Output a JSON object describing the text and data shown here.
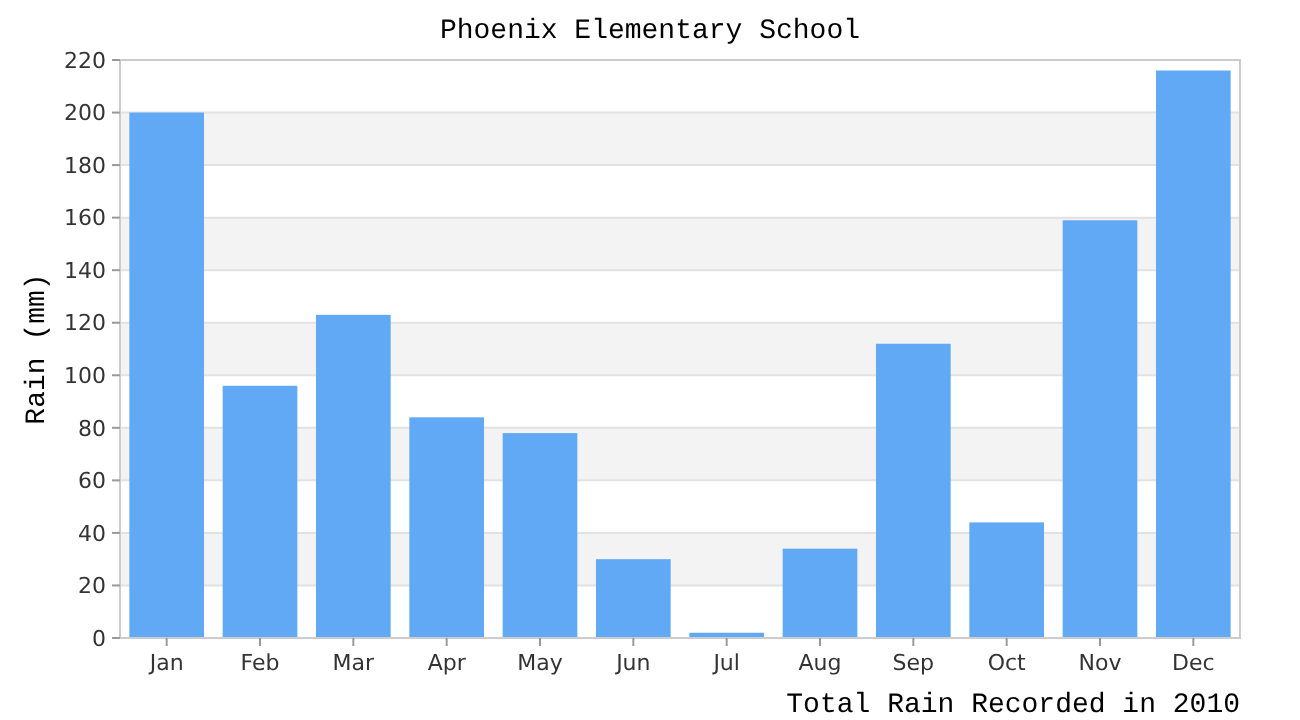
{
  "chart_data": {
    "type": "bar",
    "title": "Phoenix Elementary School",
    "xlabel": "Total Rain Recorded in 2010",
    "ylabel": "Rain (mm)",
    "categories": [
      "Jan",
      "Feb",
      "Mar",
      "Apr",
      "May",
      "Jun",
      "Jul",
      "Aug",
      "Sep",
      "Oct",
      "Nov",
      "Dec"
    ],
    "values": [
      200,
      96,
      123,
      84,
      78,
      30,
      2,
      34,
      112,
      44,
      159,
      216
    ],
    "color": "#62a9f5",
    "ylim": [
      0,
      220
    ],
    "yticks": [
      0,
      20,
      40,
      60,
      80,
      100,
      120,
      140,
      160,
      180,
      200,
      220
    ],
    "grid": true
  }
}
